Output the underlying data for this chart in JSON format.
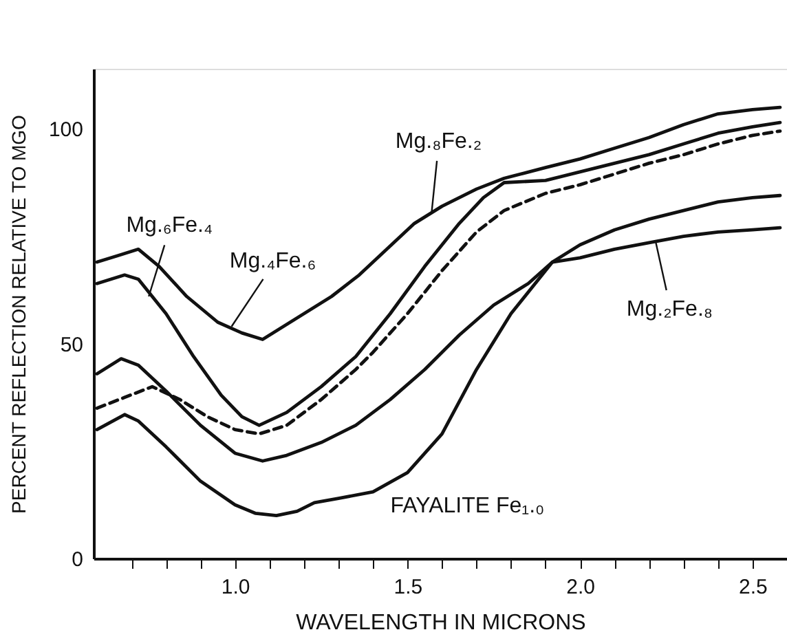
{
  "chart_data": {
    "type": "line",
    "xlabel": "WAVELENGTH IN MICRONS",
    "ylabel": "PERCENT REFLECTION RELATIVE TO MGO",
    "xlim": [
      0.59,
      2.6
    ],
    "ylim": [
      0,
      114
    ],
    "xticks": [
      {
        "value": 0.7,
        "label": null
      },
      {
        "value": 0.8,
        "label": null
      },
      {
        "value": 0.9,
        "label": null
      },
      {
        "value": 1.0,
        "label": "1.0"
      },
      {
        "value": 1.1,
        "label": null
      },
      {
        "value": 1.2,
        "label": null
      },
      {
        "value": 1.3,
        "label": null
      },
      {
        "value": 1.4,
        "label": null
      },
      {
        "value": 1.5,
        "label": "1.5"
      },
      {
        "value": 1.6,
        "label": null
      },
      {
        "value": 1.7,
        "label": null
      },
      {
        "value": 1.8,
        "label": null
      },
      {
        "value": 1.9,
        "label": null
      },
      {
        "value": 2.0,
        "label": "2.0"
      },
      {
        "value": 2.1,
        "label": null
      },
      {
        "value": 2.2,
        "label": null
      },
      {
        "value": 2.3,
        "label": null
      },
      {
        "value": 2.4,
        "label": null
      },
      {
        "value": 2.5,
        "label": "2.5"
      }
    ],
    "yticks": [
      0,
      50,
      100
    ],
    "marker": "none",
    "series": [
      {
        "color": "#111111",
        "line_style": "solid",
        "x": [
          0.6,
          0.66,
          0.72,
          0.78,
          0.86,
          0.95,
          1.02,
          1.08,
          1.12,
          1.2,
          1.28,
          1.36,
          1.44,
          1.52,
          1.6,
          1.7,
          1.78,
          1.9,
          2.0,
          2.1,
          2.2,
          2.3,
          2.4,
          2.5,
          2.58
        ],
        "values": [
          69,
          70.5,
          72,
          68,
          61,
          55,
          52.5,
          51,
          53,
          57,
          61,
          66,
          72,
          78,
          82,
          86,
          88.5,
          91,
          93,
          95.5,
          98,
          101,
          103.5,
          104.5,
          105
        ]
      },
      {
        "color": "#111111",
        "line_style": "solid",
        "x": [
          0.6,
          0.68,
          0.72,
          0.8,
          0.88,
          0.96,
          1.02,
          1.07,
          1.15,
          1.25,
          1.35,
          1.45,
          1.55,
          1.65,
          1.72,
          1.78,
          1.9,
          2.0,
          2.1,
          2.2,
          2.3,
          2.4,
          2.5,
          2.58
        ],
        "values": [
          64,
          66,
          65,
          57,
          47,
          38,
          33,
          31,
          34,
          40,
          47,
          57,
          68,
          78,
          84,
          87.5,
          88,
          90,
          92,
          94,
          96.5,
          99,
          100.5,
          101.5
        ]
      },
      {
        "color": "#111111",
        "line_style": "dashed",
        "x": [
          0.6,
          0.68,
          0.76,
          0.84,
          0.92,
          1.0,
          1.07,
          1.15,
          1.25,
          1.35,
          1.4,
          1.5,
          1.6,
          1.7,
          1.78,
          1.9,
          2.0,
          2.1,
          2.2,
          2.3,
          2.4,
          2.5,
          2.58
        ],
        "values": [
          35,
          37.5,
          40,
          37,
          33,
          30,
          29,
          31,
          37,
          44,
          48,
          57,
          67,
          76,
          81,
          85,
          87,
          89.5,
          92,
          94,
          96.5,
          98.5,
          99.5
        ]
      },
      {
        "color": "#111111",
        "line_style": "solid",
        "x": [
          0.6,
          0.67,
          0.72,
          0.8,
          0.9,
          1.0,
          1.08,
          1.15,
          1.25,
          1.35,
          1.45,
          1.55,
          1.65,
          1.75,
          1.85,
          1.92,
          2.0,
          2.1,
          2.2,
          2.3,
          2.4,
          2.5,
          2.58
        ],
        "values": [
          43,
          46.5,
          45,
          39,
          31,
          24.5,
          22.7,
          24,
          27,
          31,
          37,
          44,
          52,
          59,
          64,
          69,
          70,
          72,
          73.5,
          75,
          76,
          76.5,
          77
        ]
      },
      {
        "color": "#111111",
        "line_style": "solid",
        "x": [
          0.6,
          0.68,
          0.72,
          0.8,
          0.9,
          1.0,
          1.06,
          1.12,
          1.18,
          1.23,
          1.3,
          1.4,
          1.5,
          1.6,
          1.7,
          1.8,
          1.92,
          2.0,
          2.1,
          2.2,
          2.3,
          2.4,
          2.5,
          2.58
        ],
        "values": [
          30,
          33.5,
          32,
          26,
          18,
          12.5,
          10.5,
          10,
          11,
          13,
          14,
          15.5,
          20,
          29,
          44,
          57,
          69,
          73,
          76.5,
          79,
          81,
          83,
          84,
          84.5
        ]
      }
    ],
    "annotations": [
      {
        "text": "Mg.₆Fe.₄",
        "x": 0.75,
        "y": 61
      },
      {
        "text": "Mg.₄Fe.₆",
        "x": 0.99,
        "y": 54
      },
      {
        "text": "Mg.₈Fe.₂",
        "x": 1.57,
        "y": 80.6
      },
      {
        "text": "Mg.₂Fe.₈",
        "x": 2.22,
        "y": 73.5
      },
      "FAYALITE Fe₁.₀"
    ]
  }
}
